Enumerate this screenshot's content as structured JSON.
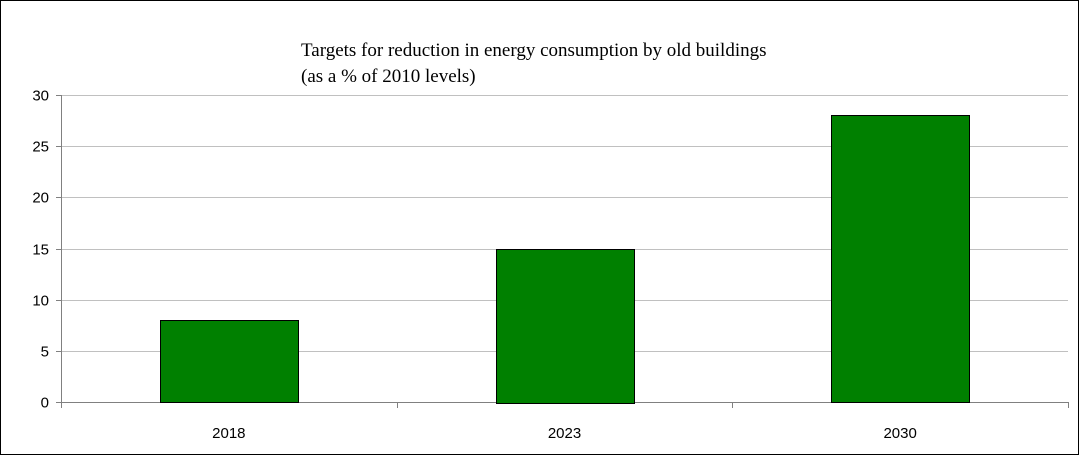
{
  "chart_data": {
    "type": "bar",
    "title": "Targets for reduction in energy consumption by old buildings",
    "subtitle": "(as a % of 2010 levels)",
    "categories": [
      "2018",
      "2023",
      "2030"
    ],
    "values": [
      8,
      15,
      28
    ],
    "xlabel": "",
    "ylabel": "",
    "ylim": [
      0,
      30
    ],
    "yticks": [
      0,
      5,
      10,
      15,
      20,
      25,
      30
    ],
    "ytick_labels": [
      "0",
      "5",
      "10",
      "15",
      "20",
      "25",
      "30"
    ],
    "grid": true,
    "legend": "none",
    "colors": {
      "bar_fill": "#008000",
      "bar_stroke": "#000000",
      "grid": "#c0c0c0",
      "axis": "#808080",
      "frame": "#000000",
      "background": "#ffffff"
    }
  }
}
